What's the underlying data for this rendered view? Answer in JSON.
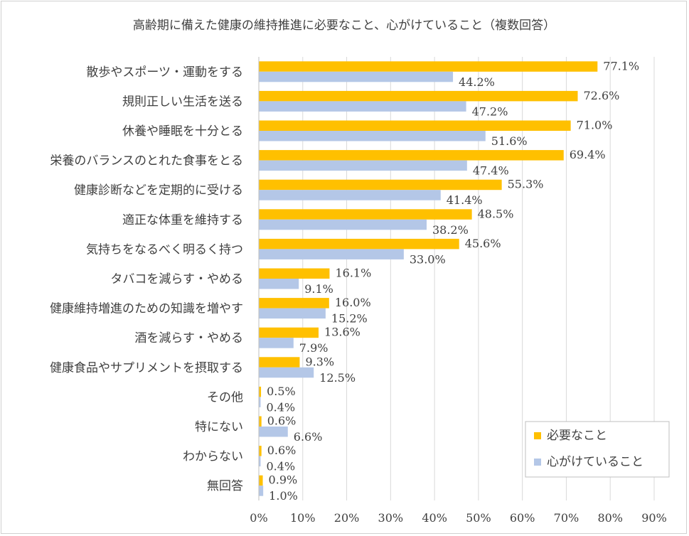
{
  "chart_data": {
    "type": "bar",
    "orientation": "horizontal",
    "title": "高齢期に備えた健康の維持推進に必要なこと、心がけていること（複数回答）",
    "categories": [
      "散歩やスポーツ・運動をする",
      "規則正しい生活を送る",
      "休養や睡眠を十分とる",
      "栄養のバランスのとれた食事をとる",
      "健康診断などを定期的に受ける",
      "適正な体重を維持する",
      "気持ちをなるべく明るく持つ",
      "タバコを減らす・やめる",
      "健康維持増進のための知識を増やす",
      "酒を減らす・やめる",
      "健康食品やサプリメントを摂取する",
      "その他",
      "特にない",
      "わからない",
      "無回答"
    ],
    "series": [
      {
        "name": "必要なこと",
        "color": "#FFC000",
        "values": [
          77.1,
          72.6,
          71.0,
          69.4,
          55.3,
          48.5,
          45.6,
          16.1,
          16.0,
          13.6,
          9.3,
          0.5,
          0.6,
          0.6,
          0.9
        ],
        "labels": [
          "77.1%",
          "72.6%",
          "71.0%",
          "69.4%",
          "55.3%",
          "48.5%",
          "45.6%",
          "16.1%",
          "16.0%",
          "13.6%",
          "9.3%",
          "0.5%",
          "0.6%",
          "0.6%",
          "0.9%"
        ]
      },
      {
        "name": "心がけていること",
        "color": "#B4C7E7",
        "values": [
          44.2,
          47.2,
          51.6,
          47.4,
          41.4,
          38.2,
          33.0,
          9.1,
          15.2,
          7.9,
          12.5,
          0.4,
          6.6,
          0.4,
          1.0
        ],
        "labels": [
          "44.2%",
          "47.2%",
          "51.6%",
          "47.4%",
          "41.4%",
          "38.2%",
          "33.0%",
          "9.1%",
          "15.2%",
          "7.9%",
          "12.5%",
          "0.4%",
          "6.6%",
          "0.4%",
          "1.0%"
        ]
      }
    ],
    "xlim": [
      0,
      90
    ],
    "x_ticks": [
      "0%",
      "10%",
      "20%",
      "30%",
      "40%",
      "50%",
      "60%",
      "70%",
      "80%",
      "90%"
    ],
    "grid": true,
    "legend_position": "bottom-right"
  }
}
